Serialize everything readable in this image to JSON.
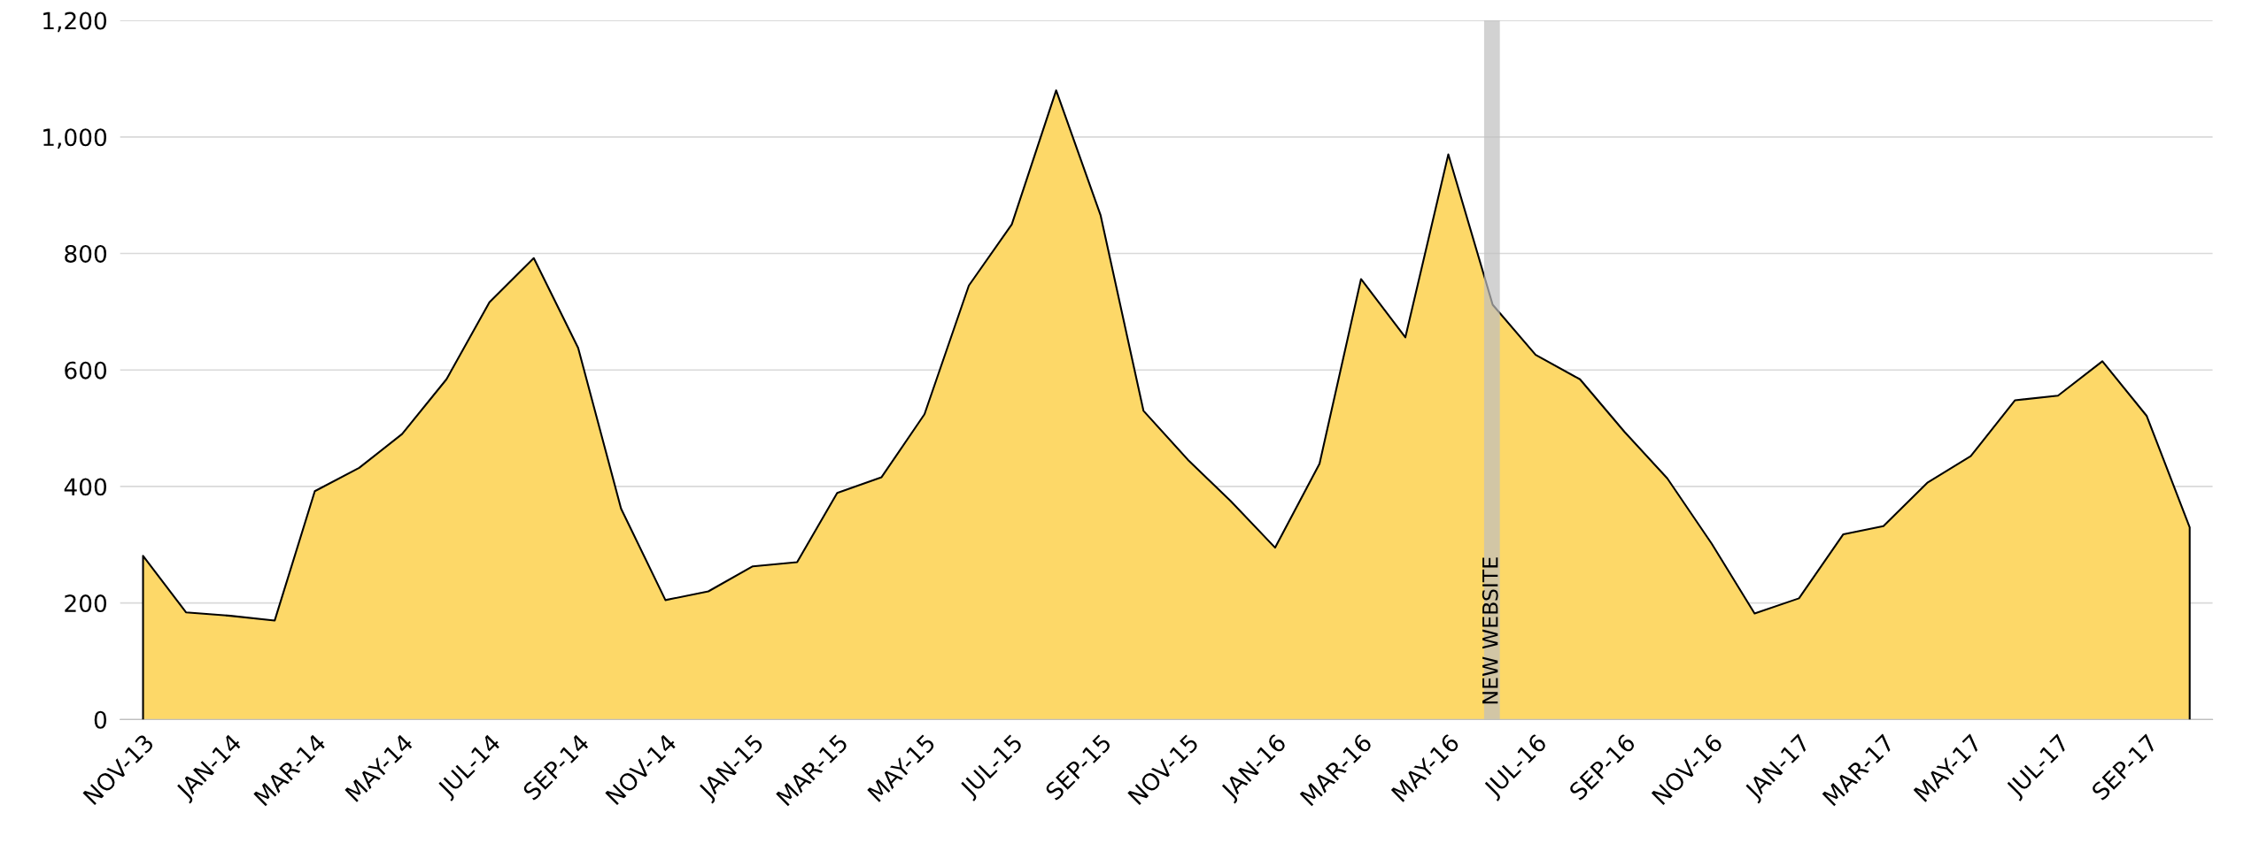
{
  "chart_data": {
    "type": "area",
    "x": [
      "2013-11",
      "2013-12",
      "2014-01",
      "2014-02",
      "2014-03",
      "2014-04",
      "2014-05",
      "2014-06",
      "2014-07",
      "2014-08",
      "2014-09",
      "2014-10",
      "2014-11",
      "2014-12",
      "2015-01",
      "2015-02",
      "2015-03",
      "2015-04",
      "2015-05",
      "2015-06",
      "2015-07",
      "2015-08",
      "2015-09",
      "2015-10",
      "2015-11",
      "2015-12",
      "2016-01",
      "2016-02",
      "2016-03",
      "2016-04",
      "2016-05",
      "2016-06",
      "2016-07",
      "2016-08",
      "2016-09",
      "2016-10",
      "2016-11",
      "2016-12",
      "2017-01",
      "2017-02",
      "2017-03",
      "2017-04",
      "2017-05",
      "2017-06",
      "2017-07",
      "2017-08",
      "2017-09",
      "2017-10"
    ],
    "series": [
      {
        "color": "#fdd868",
        "values": [
          281,
          184,
          178,
          170,
          392,
          432,
          490,
          584,
          716,
          792,
          638,
          362,
          205,
          220,
          263,
          270,
          389,
          416,
          524,
          745,
          850,
          1080,
          866,
          530,
          446,
          375,
          295,
          439,
          756,
          656,
          970,
          712,
          626,
          584,
          494,
          414,
          302,
          182,
          208,
          318,
          332,
          407,
          452,
          548,
          556,
          615,
          521,
          330
        ]
      }
    ],
    "xlim": [
      "2013-10-16",
      "2017-10-17"
    ],
    "xticks": [
      {
        "value": "2013-11",
        "label": "NOV-13"
      },
      {
        "value": "2014-01",
        "label": "JAN-14"
      },
      {
        "value": "2014-03",
        "label": "MAR-14"
      },
      {
        "value": "2014-05",
        "label": "MAY-14"
      },
      {
        "value": "2014-07",
        "label": "JUL-14"
      },
      {
        "value": "2014-09",
        "label": "SEP-14"
      },
      {
        "value": "2014-11",
        "label": "NOV-14"
      },
      {
        "value": "2015-01",
        "label": "JAN-15"
      },
      {
        "value": "2015-03",
        "label": "MAR-15"
      },
      {
        "value": "2015-05",
        "label": "MAY-15"
      },
      {
        "value": "2015-07",
        "label": "JUL-15"
      },
      {
        "value": "2015-09",
        "label": "SEP-15"
      },
      {
        "value": "2015-11",
        "label": "NOV-15"
      },
      {
        "value": "2016-01",
        "label": "JAN-16"
      },
      {
        "value": "2016-03",
        "label": "MAR-16"
      },
      {
        "value": "2016-05",
        "label": "MAY-16"
      },
      {
        "value": "2016-07",
        "label": "JUL-16"
      },
      {
        "value": "2016-09",
        "label": "SEP-16"
      },
      {
        "value": "2016-11",
        "label": "NOV-16"
      },
      {
        "value": "2017-01",
        "label": "JAN-17"
      },
      {
        "value": "2017-03",
        "label": "MAR-17"
      },
      {
        "value": "2017-05",
        "label": "MAY-17"
      },
      {
        "value": "2017-07",
        "label": "JUL-17"
      },
      {
        "value": "2017-09",
        "label": "SEP-17"
      }
    ],
    "ylim": [
      0,
      1200
    ],
    "yticks": [
      0,
      {
        "value": 200,
        "label": "200"
      },
      {
        "value": 400,
        "label": "400"
      },
      {
        "value": 600,
        "label": "600"
      },
      {
        "value": 800,
        "label": "800"
      },
      {
        "value": 1000,
        "label": "1,000"
      },
      {
        "value": 1200,
        "label": "1,200"
      }
    ],
    "bands": [
      {
        "axis": "x",
        "from": "2016-05-26",
        "to": "2016-06-06",
        "label": "NEW WEBSITE",
        "color": "#bfbfbf"
      }
    ],
    "grid": "y"
  }
}
